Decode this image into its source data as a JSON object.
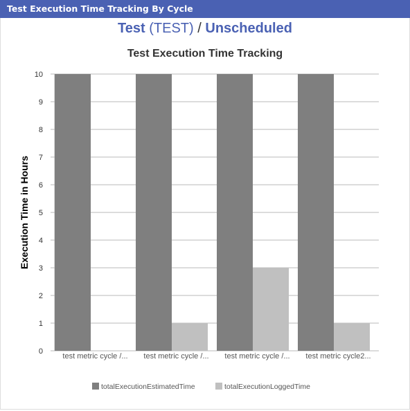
{
  "header": {
    "title": "Test Execution Time Tracking By Cycle"
  },
  "breadcrumb": {
    "project": "Test",
    "project_key": "(TEST)",
    "separator": "/",
    "cycle": "Unscheduled"
  },
  "colors": {
    "header_bg": "#4a61b3",
    "link": "#4a61b3",
    "estimated": "#7f7f7f",
    "logged": "#c0c0c0",
    "grid": "#b8b8b8"
  },
  "chart_data": {
    "type": "bar",
    "title": "Test Execution Time Tracking",
    "xlabel": "",
    "ylabel": "Execution Time in Hours",
    "ylim": [
      0,
      10
    ],
    "yticks": [
      0,
      1,
      2,
      3,
      4,
      5,
      6,
      7,
      8,
      9,
      10
    ],
    "grid": true,
    "legend_position": "bottom",
    "categories": [
      "test metric cycle /...",
      "test metric cycle /...",
      "test metric cycle /...",
      "test metric cycle2..."
    ],
    "series": [
      {
        "name": "totalExecutionEstimatedTime",
        "color": "#7f7f7f",
        "values": [
          10,
          10,
          10,
          10
        ]
      },
      {
        "name": "totalExecutionLoggedTime",
        "color": "#c0c0c0",
        "values": [
          0,
          1,
          3,
          1
        ]
      }
    ]
  }
}
